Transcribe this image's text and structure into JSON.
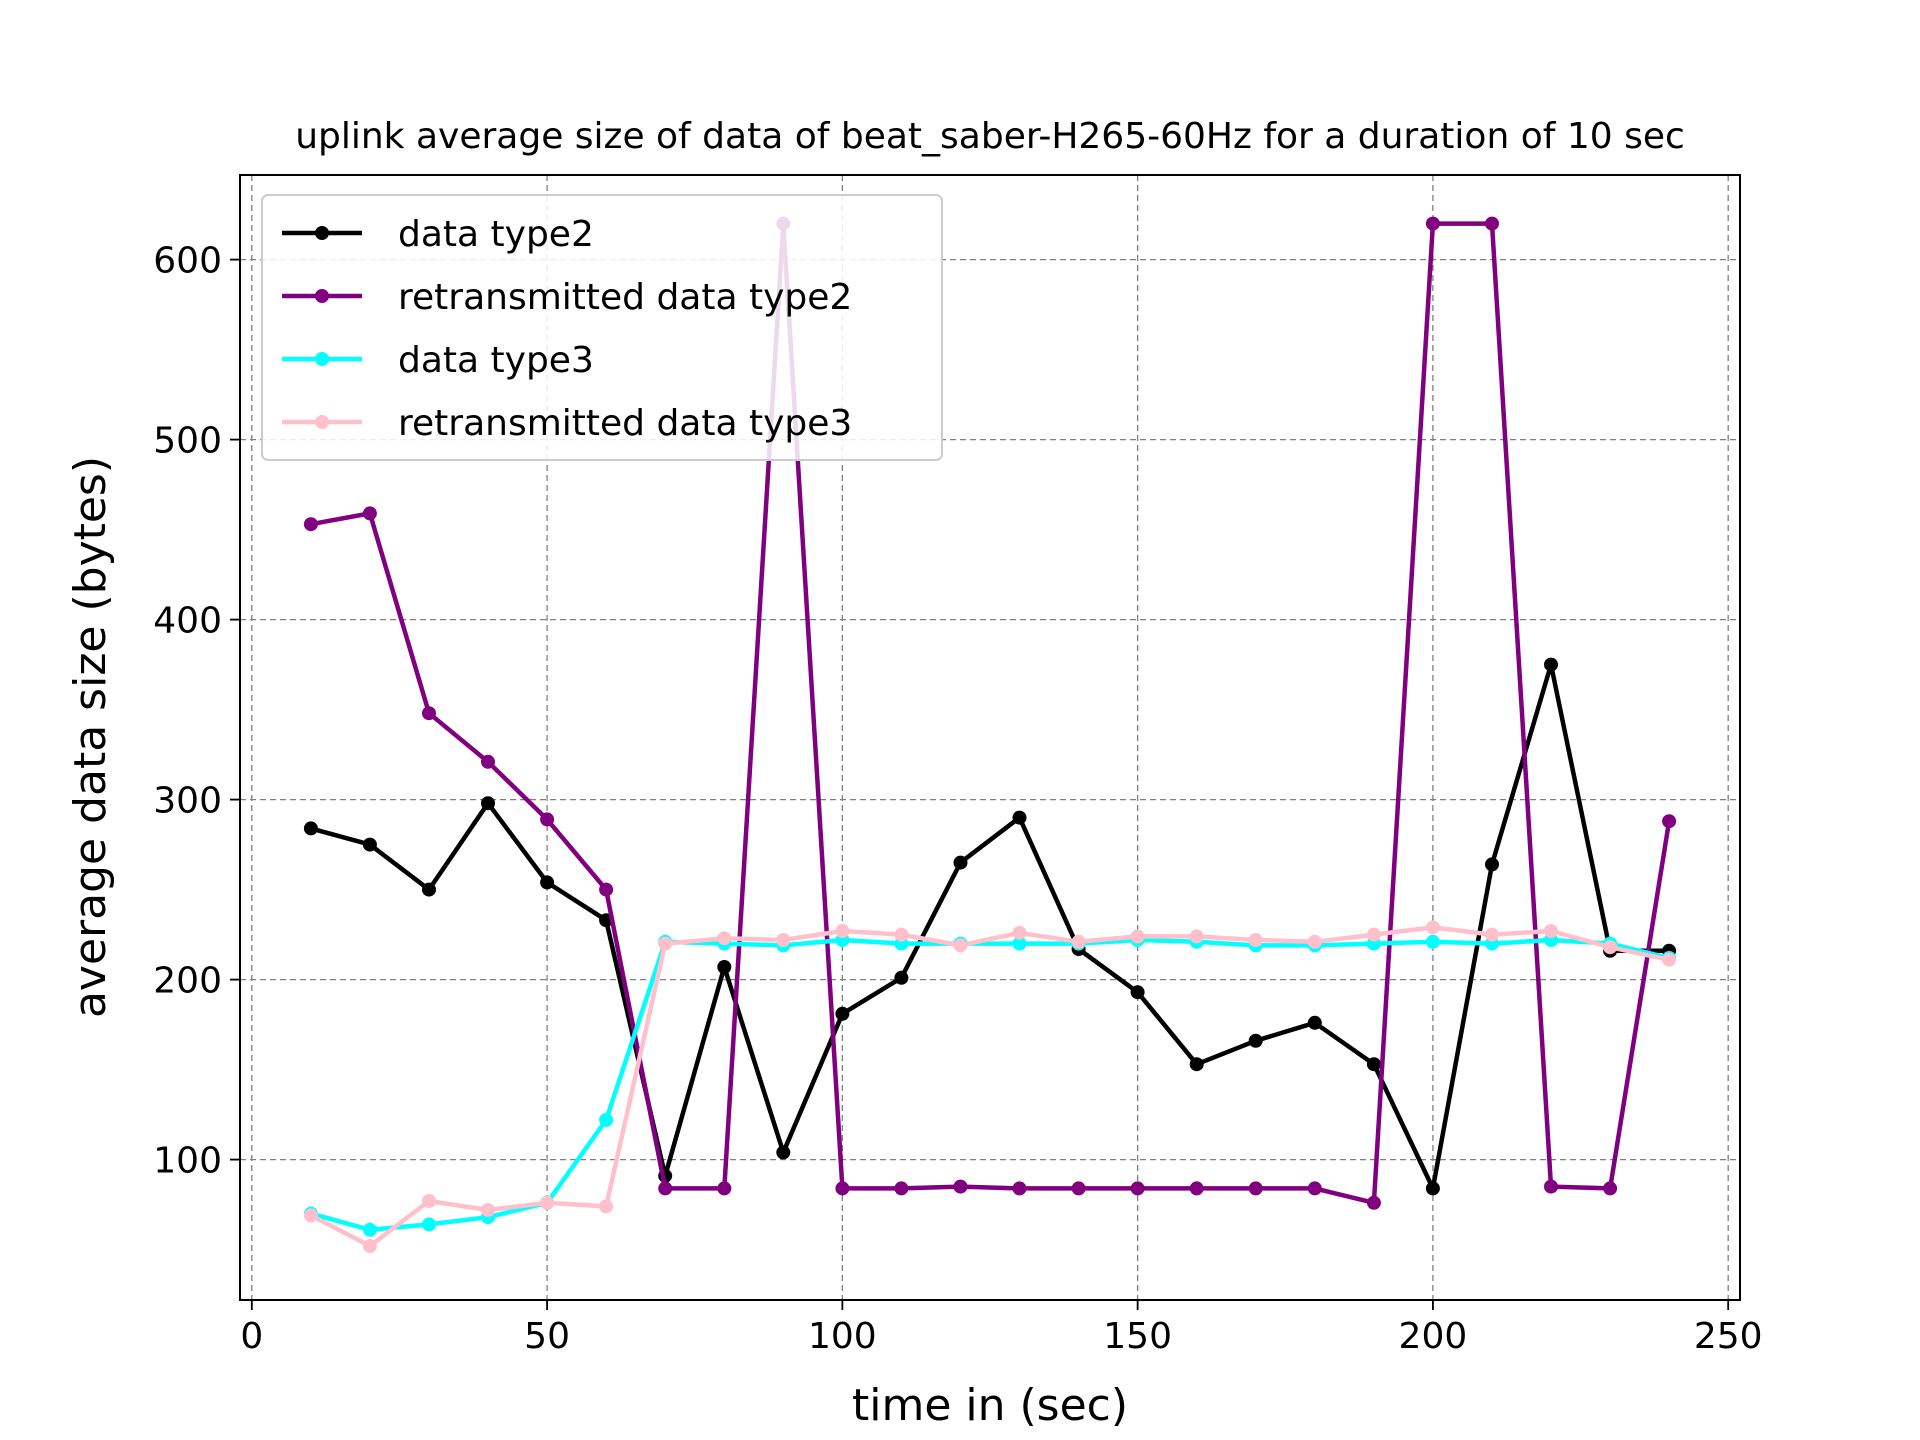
{
  "chart_data": {
    "type": "line",
    "title": "uplink average size of data of beat_saber-H265-60Hz for a duration of 10 sec",
    "xlabel": "time in (sec)",
    "ylabel": "average data size (bytes)",
    "xlim": [
      -2,
      252
    ],
    "ylim": [
      22,
      647
    ],
    "xticks": [
      0,
      50,
      100,
      150,
      200,
      250
    ],
    "yticks": [
      100,
      200,
      300,
      400,
      500,
      600
    ],
    "grid": true,
    "legend_position": "upper-left",
    "x": [
      10,
      20,
      30,
      40,
      50,
      60,
      70,
      80,
      90,
      100,
      110,
      120,
      130,
      140,
      150,
      160,
      170,
      180,
      190,
      200,
      210,
      220,
      230,
      240
    ],
    "series": [
      {
        "name": "data type2",
        "color": "#000000",
        "values": [
          284,
          275,
          250,
          298,
          254,
          233,
          91,
          207,
          104,
          181,
          201,
          265,
          290,
          217,
          193,
          153,
          166,
          176,
          153,
          84,
          264,
          375,
          216,
          216
        ]
      },
      {
        "name": "retransmitted data type2",
        "color": "#800080",
        "values": [
          453,
          459,
          348,
          321,
          289,
          250,
          84,
          84,
          620,
          84,
          84,
          85,
          84,
          84,
          84,
          84,
          84,
          84,
          76,
          620,
          620,
          85,
          84,
          288
        ]
      },
      {
        "name": "data type3",
        "color": "#00ffff",
        "values": [
          70,
          61,
          64,
          68,
          76,
          122,
          221,
          220,
          219,
          222,
          220,
          220,
          220,
          220,
          222,
          221,
          219,
          219,
          220,
          221,
          220,
          222,
          220,
          212
        ]
      },
      {
        "name": "retransmitted data type3",
        "color": "#ffc0cb",
        "values": [
          69,
          52,
          77,
          72,
          76,
          74,
          220,
          223,
          222,
          227,
          225,
          219,
          226,
          221,
          224,
          224,
          222,
          221,
          225,
          229,
          225,
          227,
          218,
          211
        ]
      }
    ]
  }
}
